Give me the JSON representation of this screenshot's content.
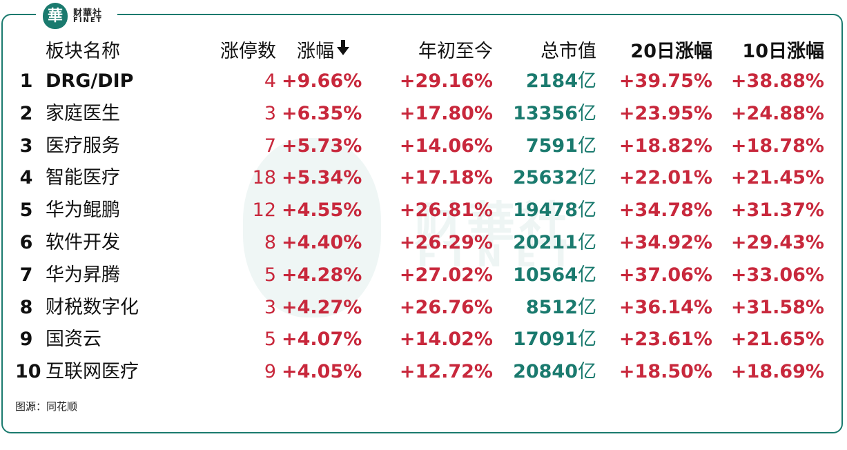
{
  "brand": {
    "logo_char": "華",
    "cn": "财華社",
    "en": "FINET"
  },
  "colors": {
    "frame": "#1a7a6e",
    "up": "#c8283c",
    "cap": "#1a7a6e",
    "text": "#111111"
  },
  "source": "图源：同花顺",
  "chart_data": {
    "type": "table",
    "columns": [
      "板块名称",
      "涨停数",
      "涨幅",
      "年初至今",
      "总市值",
      "20日涨幅",
      "10日涨幅"
    ],
    "sort_column": "涨幅",
    "sort_order": "descending",
    "rows": [
      {
        "rank": "1",
        "name": "DRG/DIP",
        "limit_up": "4",
        "change": "+9.66%",
        "ytd": "+29.16%",
        "cap": "2184",
        "cap_unit": "亿",
        "d20": "+39.75%",
        "d10": "+38.88%"
      },
      {
        "rank": "2",
        "name": "家庭医生",
        "limit_up": "3",
        "change": "+6.35%",
        "ytd": "+17.80%",
        "cap": "13356",
        "cap_unit": "亿",
        "d20": "+23.95%",
        "d10": "+24.88%"
      },
      {
        "rank": "3",
        "name": "医疗服务",
        "limit_up": "7",
        "change": "+5.73%",
        "ytd": "+14.06%",
        "cap": "7591",
        "cap_unit": "亿",
        "d20": "+18.82%",
        "d10": "+18.78%"
      },
      {
        "rank": "4",
        "name": "智能医疗",
        "limit_up": "18",
        "change": "+5.34%",
        "ytd": "+17.18%",
        "cap": "25632",
        "cap_unit": "亿",
        "d20": "+22.01%",
        "d10": "+21.45%"
      },
      {
        "rank": "5",
        "name": "华为鲲鹏",
        "limit_up": "12",
        "change": "+4.55%",
        "ytd": "+26.81%",
        "cap": "19478",
        "cap_unit": "亿",
        "d20": "+34.78%",
        "d10": "+31.37%"
      },
      {
        "rank": "6",
        "name": "软件开发",
        "limit_up": "8",
        "change": "+4.40%",
        "ytd": "+26.29%",
        "cap": "20211",
        "cap_unit": "亿",
        "d20": "+34.92%",
        "d10": "+29.43%"
      },
      {
        "rank": "7",
        "name": "华为昇腾",
        "limit_up": "5",
        "change": "+4.28%",
        "ytd": "+27.02%",
        "cap": "10564",
        "cap_unit": "亿",
        "d20": "+37.06%",
        "d10": "+33.06%"
      },
      {
        "rank": "8",
        "name": "财税数字化",
        "limit_up": "3",
        "change": "+4.27%",
        "ytd": "+26.76%",
        "cap": "8512",
        "cap_unit": "亿",
        "d20": "+36.14%",
        "d10": "+31.58%"
      },
      {
        "rank": "9",
        "name": "国资云",
        "limit_up": "5",
        "change": "+4.07%",
        "ytd": "+14.02%",
        "cap": "17091",
        "cap_unit": "亿",
        "d20": "+23.61%",
        "d10": "+21.65%"
      },
      {
        "rank": "10",
        "name": "互联网医疗",
        "limit_up": "9",
        "change": "+4.05%",
        "ytd": "+12.72%",
        "cap": "20840",
        "cap_unit": "亿",
        "d20": "+18.50%",
        "d10": "+18.69%"
      }
    ]
  }
}
